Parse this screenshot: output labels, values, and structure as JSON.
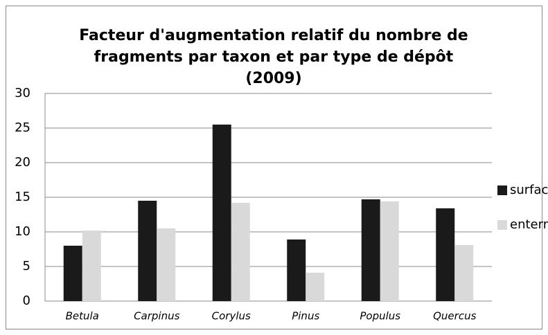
{
  "chart_data": {
    "type": "bar",
    "title": "Facteur d'augmentation relatif du nombre de fragments par taxon et par type de dépôt (2009)",
    "categories": [
      "Betula",
      "Carpinus",
      "Corylus",
      "Pinus",
      "Populus",
      "Quercus"
    ],
    "series": [
      {
        "name": "surface",
        "color": "#1a1a1a",
        "values": [
          8,
          14.5,
          25.5,
          8.9,
          14.7,
          13.4
        ]
      },
      {
        "name": "enterré",
        "color": "#d9d9d9",
        "values": [
          10.2,
          10.5,
          14.2,
          4.1,
          14.4,
          8.1
        ]
      }
    ],
    "ylim": [
      0,
      30
    ],
    "yticks": [
      0,
      5,
      10,
      15,
      20,
      25,
      30
    ],
    "grid": true,
    "legend": "right"
  }
}
